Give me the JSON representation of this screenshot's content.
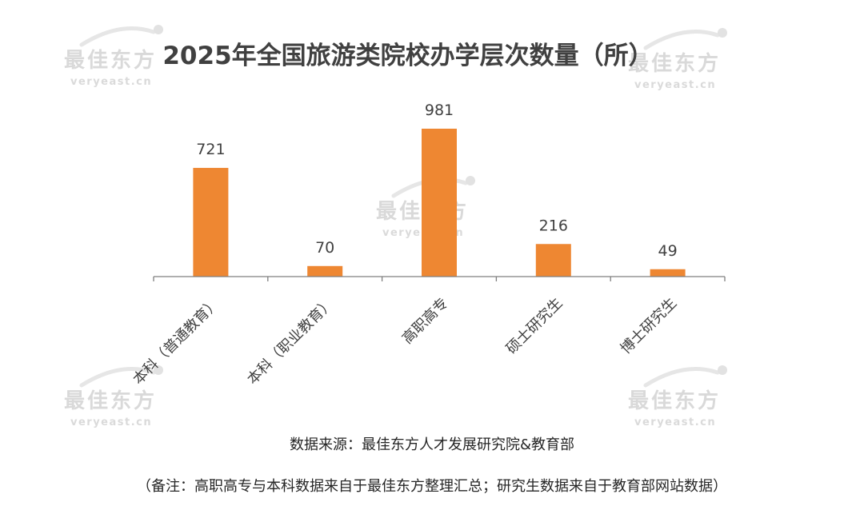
{
  "watermark": {
    "cn": "最佳东方",
    "en": "veryeast.cn"
  },
  "chart_data": {
    "type": "bar",
    "title": "2025年全国旅游类院校办学层次数量（所）",
    "categories": [
      "本科（普通教育）",
      "本科（职业教育）",
      "高职高专",
      "硕士研究生",
      "博士研究生"
    ],
    "values": [
      721,
      70,
      981,
      216,
      49
    ],
    "ylim": [
      0,
      981
    ],
    "grid": false,
    "legend": "none",
    "bar_color": "#ee8732"
  },
  "footer": {
    "source": "数据来源：最佳东方人才发展研究院&教育部",
    "note": "（备注：高职高专与本科数据来自于最佳东方整理汇总；研究生数据来自于教育部网站数据）"
  }
}
